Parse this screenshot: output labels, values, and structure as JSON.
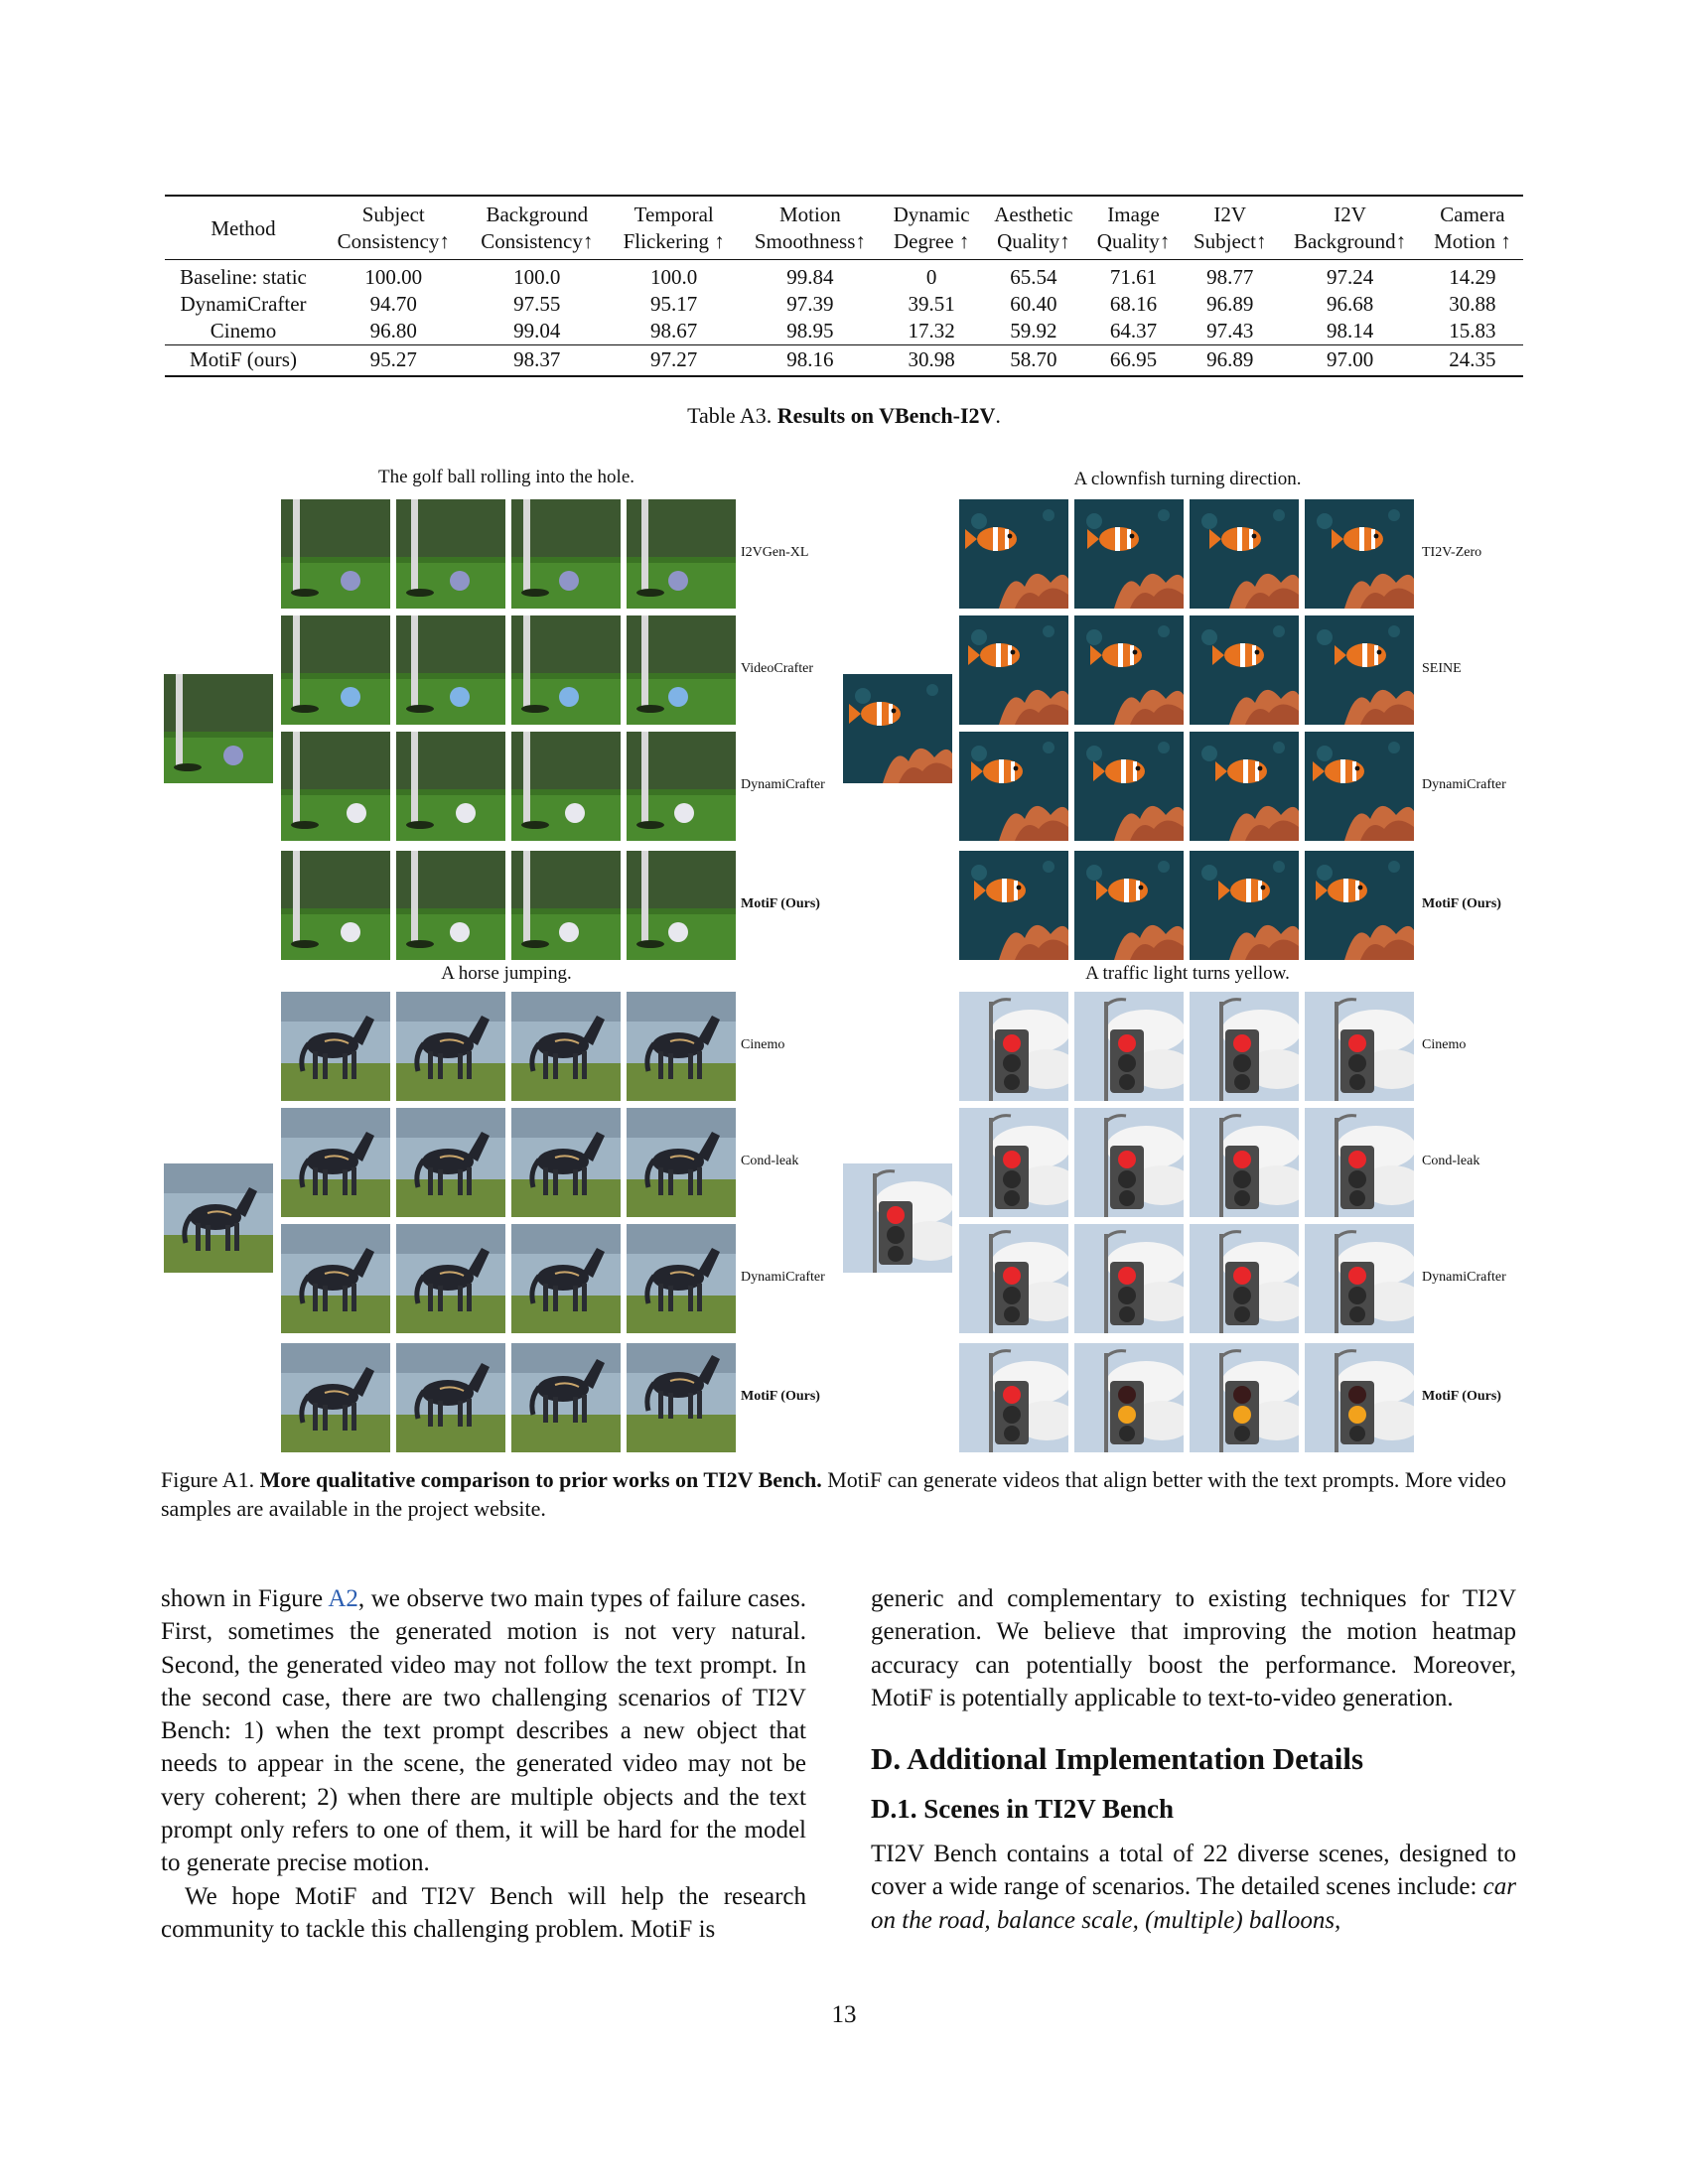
{
  "table": {
    "columns": [
      {
        "l1": "Method",
        "l2": ""
      },
      {
        "l1": "Subject",
        "l2": "Consistency↑"
      },
      {
        "l1": "Background",
        "l2": "Consistency↑"
      },
      {
        "l1": "Temporal",
        "l2": "Flickering ↑"
      },
      {
        "l1": "Motion",
        "l2": "Smoothness↑"
      },
      {
        "l1": "Dynamic",
        "l2": "Degree ↑"
      },
      {
        "l1": "Aesthetic",
        "l2": "Quality↑"
      },
      {
        "l1": "Image",
        "l2": "Quality↑"
      },
      {
        "l1": "I2V",
        "l2": "Subject↑"
      },
      {
        "l1": "I2V",
        "l2": "Background↑"
      },
      {
        "l1": "Camera",
        "l2": "Motion ↑"
      }
    ],
    "rows": [
      [
        "Baseline: static",
        "100.00",
        "100.0",
        "100.0",
        "99.84",
        "0",
        "65.54",
        "71.61",
        "98.77",
        "97.24",
        "14.29"
      ],
      [
        "DynamiCrafter",
        "94.70",
        "97.55",
        "95.17",
        "97.39",
        "39.51",
        "60.40",
        "68.16",
        "96.89",
        "96.68",
        "30.88"
      ],
      [
        "Cinemo",
        "96.80",
        "99.04",
        "98.67",
        "98.95",
        "17.32",
        "59.92",
        "64.37",
        "97.43",
        "98.14",
        "15.83"
      ],
      [
        "MotiF (ours)",
        "95.27",
        "98.37",
        "97.27",
        "98.16",
        "30.98",
        "58.70",
        "66.95",
        "96.89",
        "97.00",
        "24.35"
      ]
    ],
    "caption_prefix": "Table A3. ",
    "caption_bold": "Results on VBench-I2V",
    "caption_suffix": "."
  },
  "figure": {
    "panels": [
      {
        "title": "The golf ball rolling into the hole.",
        "scene": "golf",
        "methods": [
          "I2VGen-XL",
          "VideoCrafter",
          "DynamiCrafter",
          "MotiF (Ours)"
        ]
      },
      {
        "title": "A clownfish turning direction.",
        "scene": "fish",
        "methods": [
          "TI2V-Zero",
          "SEINE",
          "DynamiCrafter",
          "MotiF (Ours)"
        ]
      },
      {
        "title": "A horse jumping.",
        "scene": "horse",
        "methods": [
          "Cinemo",
          "Cond-leak",
          "DynamiCrafter",
          "MotiF (Ours)"
        ]
      },
      {
        "title": "A traffic light turns yellow.",
        "scene": "traffic",
        "methods": [
          "Cinemo",
          "Cond-leak",
          "DynamiCrafter",
          "MotiF (Ours)"
        ]
      }
    ],
    "caption_prefix": "Figure A1.  ",
    "caption_bold": "More qualitative comparison to prior works on TI2V Bench.",
    "caption_rest": "  MotiF can generate videos that align better with the text prompts. More video samples are available in the project website."
  },
  "body": {
    "left_p1_a": "shown in Figure ",
    "left_p1_link": "A2",
    "left_p1_b": ", we observe two main types of failure cases.  First, sometimes the generated motion is not very natural.  Second, the generated video may not follow the text prompt.  In the second case, there are two challenging scenarios of TI2V Bench: 1) when the text prompt describes a new object that needs to appear in the scene, the generated video may not be very coherent; 2) when there are multiple objects and the text prompt only refers to one of them, it will be hard for the model to generate precise motion.",
    "left_p2": "We hope MotiF and TI2V Bench will help the research community to tackle this challenging problem.  MotiF is",
    "right_p1": "generic and complementary to existing techniques for TI2V generation. We believe that improving the motion heatmap accuracy can potentially boost the performance. Moreover, MotiF is potentially applicable to text-to-video generation.",
    "section": "D. Additional Implementation Details",
    "subsection": "D.1. Scenes in TI2V Bench",
    "right_p2_a": "TI2V Bench contains a total of 22 diverse scenes, designed to cover a wide range of scenarios. The detailed scenes include: ",
    "right_p2_italic": "car on the road, balance scale, (multiple) balloons,"
  },
  "page_number": "13"
}
